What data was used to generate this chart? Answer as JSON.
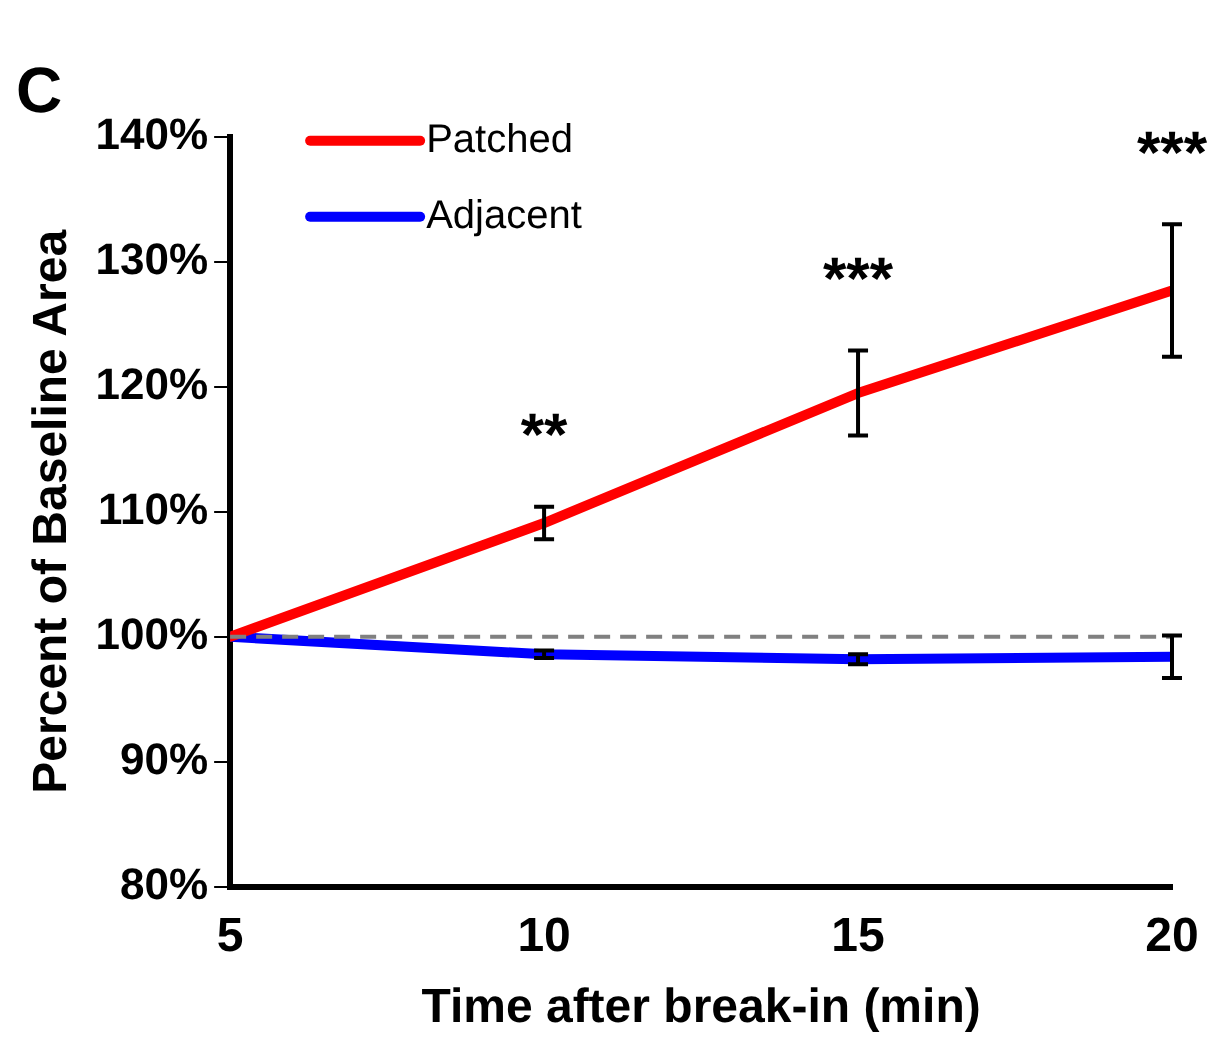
{
  "chart_data": {
    "type": "line",
    "title": "C",
    "xlabel": "Time after break-in (min)",
    "ylabel": "Percent of Baseline Area",
    "x": [
      5,
      10,
      15,
      20
    ],
    "series": [
      {
        "name": "Patched",
        "color": "#ff0000",
        "values": [
          100,
          109.1,
          119.5,
          127.7
        ],
        "errors": [
          null,
          1.3,
          3.4,
          5.3
        ]
      },
      {
        "name": "Adjacent",
        "color": "#0000ff",
        "values": [
          100,
          98.6,
          98.2,
          98.4
        ],
        "errors": [
          null,
          0.3,
          0.4,
          1.7
        ]
      }
    ],
    "xlim": [
      5,
      20
    ],
    "xticks": [
      5,
      10,
      15,
      20
    ],
    "ylim": [
      80,
      140
    ],
    "yticks": [
      {
        "value": 80,
        "label": "80%"
      },
      {
        "value": 90,
        "label": "90%"
      },
      {
        "value": 100,
        "label": "100%"
      },
      {
        "value": 110,
        "label": "110%"
      },
      {
        "value": 120,
        "label": "120%"
      },
      {
        "value": 130,
        "label": "130%"
      },
      {
        "value": 140,
        "label": "140%"
      }
    ],
    "ref_lines": [
      {
        "axis": "y",
        "value": 100,
        "label": null,
        "color": "#808080",
        "line_style": "dashed"
      }
    ],
    "annotations": [
      "**",
      "***",
      "***"
    ],
    "grid": false,
    "legend": "top left",
    "marker": "none",
    "line_style": "solid"
  }
}
